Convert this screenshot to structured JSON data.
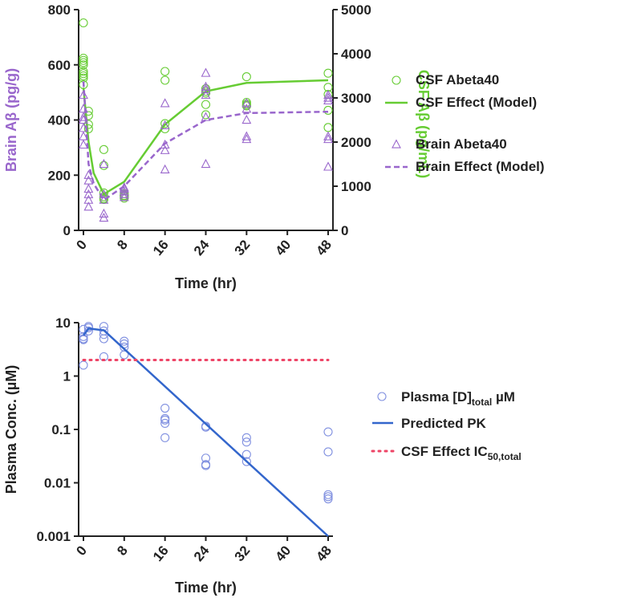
{
  "chart_data": [
    {
      "type": "scatter",
      "xlabel": "Time (hr)",
      "ylabel": "Brain Aβ (pg/g)",
      "y2label": "CSF Aβ (pg/mL)",
      "xlim": [
        0,
        48
      ],
      "ylim": [
        0,
        800
      ],
      "y2lim": [
        0,
        5000
      ],
      "xticks": [
        "0",
        "8",
        "16",
        "24",
        "32",
        "40",
        "48"
      ],
      "yticks": [
        "0",
        "200",
        "400",
        "600",
        "800"
      ],
      "y2ticks": [
        "0",
        "1000",
        "2000",
        "3000",
        "4000",
        "5000"
      ],
      "legend_position": "right",
      "colors": {
        "csf": "#66cc33",
        "brain": "#9966cc"
      },
      "series": [
        {
          "name": "CSF Abeta40",
          "axis": "right",
          "marker": "circle",
          "points": [
            [
              0,
              4700
            ],
            [
              0,
              3900
            ],
            [
              0,
              3850
            ],
            [
              0,
              3800
            ],
            [
              0,
              3750
            ],
            [
              0,
              3600
            ],
            [
              0,
              3550
            ],
            [
              0,
              3500
            ],
            [
              0,
              3450
            ],
            [
              0,
              3300
            ],
            [
              1,
              2700
            ],
            [
              1,
              2600
            ],
            [
              1,
              2400
            ],
            [
              1,
              2300
            ],
            [
              4,
              1830
            ],
            [
              4,
              1470
            ],
            [
              4,
              850
            ],
            [
              4,
              760
            ],
            [
              4,
              720
            ],
            [
              4,
              700
            ],
            [
              8,
              830
            ],
            [
              8,
              790
            ],
            [
              8,
              780
            ],
            [
              8,
              770
            ],
            [
              8,
              730
            ],
            [
              16,
              3600
            ],
            [
              16,
              3400
            ],
            [
              16,
              2420
            ],
            [
              16,
              2300
            ],
            [
              24,
              3210
            ],
            [
              24,
              3150
            ],
            [
              24,
              3110
            ],
            [
              24,
              2850
            ],
            [
              24,
              2620
            ],
            [
              32,
              3480
            ],
            [
              32,
              2900
            ],
            [
              32,
              2860
            ],
            [
              32,
              2830
            ],
            [
              32,
              2820
            ],
            [
              48,
              3560
            ],
            [
              48,
              3240
            ],
            [
              48,
              3080
            ],
            [
              48,
              2720
            ],
            [
              48,
              2330
            ]
          ]
        },
        {
          "name": "CSF Effect (Model)",
          "axis": "right",
          "marker": "line",
          "points": [
            [
              0,
              3230
            ],
            [
              1,
              2000
            ],
            [
              2,
              1300
            ],
            [
              4,
              820
            ],
            [
              8,
              1100
            ],
            [
              16,
              2400
            ],
            [
              24,
              3150
            ],
            [
              32,
              3340
            ],
            [
              48,
              3400
            ]
          ]
        },
        {
          "name": "Brain Abeta40",
          "axis": "left",
          "marker": "triangle",
          "points": [
            [
              0,
              490
            ],
            [
              0,
              440
            ],
            [
              0,
              410
            ],
            [
              0,
              400
            ],
            [
              0,
              370
            ],
            [
              0,
              340
            ],
            [
              0,
              310
            ],
            [
              1,
              200
            ],
            [
              1,
              180
            ],
            [
              1,
              150
            ],
            [
              1,
              130
            ],
            [
              1,
              110
            ],
            [
              1,
              85
            ],
            [
              4,
              240
            ],
            [
              4,
              130
            ],
            [
              4,
              110
            ],
            [
              4,
              60
            ],
            [
              4,
              45
            ],
            [
              8,
              155
            ],
            [
              8,
              150
            ],
            [
              8,
              140
            ],
            [
              8,
              130
            ],
            [
              8,
              120
            ],
            [
              16,
              460
            ],
            [
              16,
              380
            ],
            [
              16,
              310
            ],
            [
              16,
              290
            ],
            [
              16,
              220
            ],
            [
              24,
              570
            ],
            [
              24,
              520
            ],
            [
              24,
              510
            ],
            [
              24,
              490
            ],
            [
              24,
              410
            ],
            [
              24,
              240
            ],
            [
              32,
              460
            ],
            [
              32,
              440
            ],
            [
              32,
              400
            ],
            [
              32,
              340
            ],
            [
              32,
              330
            ],
            [
              48,
              490
            ],
            [
              48,
              480
            ],
            [
              48,
              470
            ],
            [
              48,
              340
            ],
            [
              48,
              330
            ],
            [
              48,
              230
            ]
          ]
        },
        {
          "name": "Brain Effect (Model)",
          "axis": "left",
          "marker": "dashed-line",
          "points": [
            [
              0,
              540
            ],
            [
              1,
              240
            ],
            [
              2,
              170
            ],
            [
              4,
              110
            ],
            [
              8,
              160
            ],
            [
              16,
              315
            ],
            [
              24,
              400
            ],
            [
              32,
              425
            ],
            [
              48,
              430
            ]
          ]
        }
      ]
    },
    {
      "type": "scatter",
      "xlabel": "Time (hr)",
      "ylabel": "Plasma Conc. (µM)",
      "xlim": [
        0,
        48
      ],
      "ylim": [
        0.001,
        10
      ],
      "yscale": "log",
      "xticks": [
        "0",
        "8",
        "16",
        "24",
        "32",
        "40",
        "48"
      ],
      "yticks": [
        "10",
        "1",
        "0.1",
        "0.01",
        "0.001"
      ],
      "legend_position": "right",
      "colors": {
        "plasma": "#8090e0",
        "pk": "#3366cc",
        "ic50": "#ee4466"
      },
      "series": [
        {
          "name_main": "Plasma [D]",
          "name_sub": "total",
          "name_suffix": " µM",
          "marker": "circle",
          "points": [
            [
              0,
              7.5
            ],
            [
              0,
              5.5
            ],
            [
              0,
              5.0
            ],
            [
              0,
              4.8
            ],
            [
              0,
              1.6
            ],
            [
              1,
              8.5
            ],
            [
              1,
              8.0
            ],
            [
              1,
              7.0
            ],
            [
              4,
              8.5
            ],
            [
              4,
              7.0
            ],
            [
              4,
              6.0
            ],
            [
              4,
              5.0
            ],
            [
              4,
              2.3
            ],
            [
              8,
              4.5
            ],
            [
              8,
              4.0
            ],
            [
              8,
              3.5
            ],
            [
              8,
              2.5
            ],
            [
              16,
              0.25
            ],
            [
              16,
              0.16
            ],
            [
              16,
              0.15
            ],
            [
              16,
              0.13
            ],
            [
              16,
              0.07
            ],
            [
              24,
              0.115
            ],
            [
              24,
              0.11
            ],
            [
              24,
              0.029
            ],
            [
              24,
              0.022
            ],
            [
              24,
              0.021
            ],
            [
              32,
              0.07
            ],
            [
              32,
              0.058
            ],
            [
              32,
              0.034
            ],
            [
              32,
              0.025
            ],
            [
              48,
              0.09
            ],
            [
              48,
              0.038
            ],
            [
              48,
              0.006
            ],
            [
              48,
              0.0055
            ],
            [
              48,
              0.005
            ]
          ]
        },
        {
          "name_main": "Predicted PK",
          "marker": "line",
          "points": [
            [
              0,
              5.8
            ],
            [
              1,
              7.8
            ],
            [
              4,
              7.2
            ],
            [
              48,
              0.001
            ]
          ]
        },
        {
          "name_main": "CSF Effect IC",
          "name_sub": "50,total",
          "marker": "dotted-line",
          "points": [
            [
              0,
              2.0
            ],
            [
              48,
              2.0
            ]
          ]
        }
      ]
    }
  ]
}
